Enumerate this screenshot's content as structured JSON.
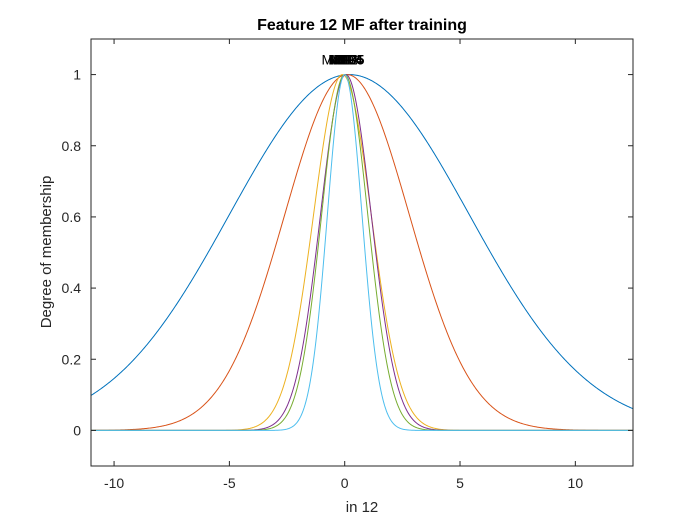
{
  "chart_data": {
    "type": "line",
    "title": "Feature  12 MF after training",
    "xlabel": "in 12",
    "ylabel": "Degree of membership",
    "xlim": [
      -11,
      12.5
    ],
    "ylim": [
      -0.1,
      1.1
    ],
    "xticks": [
      -10,
      -5,
      0,
      5,
      10
    ],
    "yticks": [
      0,
      0.2,
      0.4,
      0.6,
      0.8,
      1
    ],
    "grid": false,
    "legend": "none",
    "series": [
      {
        "name": "MF1",
        "function": "gaussian",
        "center": 0.2,
        "sigma": 5.2,
        "color": "#0072BD"
      },
      {
        "name": "MF2",
        "function": "gaussian",
        "center": 0.1,
        "sigma": 2.7,
        "color": "#D95319"
      },
      {
        "name": "MF3",
        "function": "gaussian",
        "center": -0.1,
        "sigma": 1.25,
        "color": "#EDB120"
      },
      {
        "name": "MF4",
        "function": "gaussian",
        "center": 0.05,
        "sigma": 1.1,
        "color": "#7E2F8E"
      },
      {
        "name": "MF5",
        "function": "gaussian",
        "center": 0.0,
        "sigma": 1.0,
        "color": "#77AC30"
      },
      {
        "name": "MF6",
        "function": "gaussian",
        "center": 0.0,
        "sigma": 0.75,
        "color": "#4DBEEE"
      }
    ]
  }
}
